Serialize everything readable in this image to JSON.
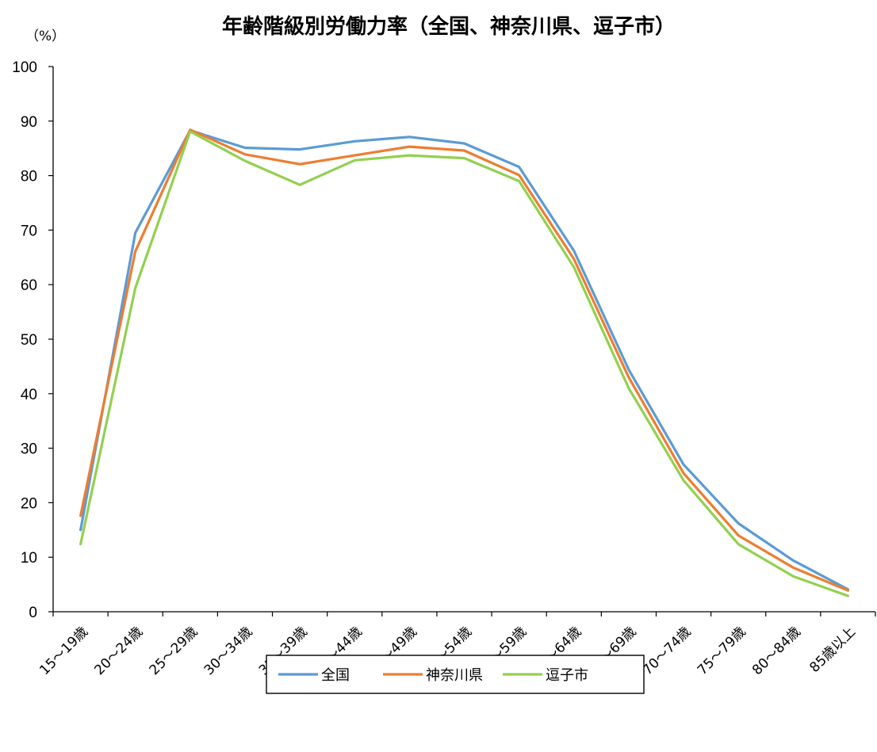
{
  "chart_data": {
    "type": "line",
    "title": "年齢階級別労働力率（全国、神奈川県、逗子市）",
    "ylabel": "（%）",
    "xlabel": "",
    "ylim": [
      0,
      100
    ],
    "yticks": [
      0,
      10,
      20,
      30,
      40,
      50,
      60,
      70,
      80,
      90,
      100
    ],
    "grid": false,
    "legend_position": "bottom",
    "categories": [
      "15～19歳",
      "20～24歳",
      "25～29歳",
      "30～34歳",
      "35～39歳",
      "40～44歳",
      "45～49歳",
      "50～54歳",
      "55～59歳",
      "60～64歳",
      "65～69歳",
      "70～74歳",
      "75～79歳",
      "80～84歳",
      "85歳以上"
    ],
    "series": [
      {
        "name": "全国",
        "color": "#5b9bd5",
        "values": [
          15.0,
          69.5,
          88.3,
          85.1,
          84.8,
          86.3,
          87.1,
          85.9,
          81.6,
          66.2,
          44.4,
          27.0,
          16.2,
          9.4,
          4.1
        ]
      },
      {
        "name": "神奈川県",
        "color": "#ed7d31",
        "values": [
          17.6,
          66.1,
          88.4,
          83.9,
          82.1,
          83.7,
          85.3,
          84.6,
          80.1,
          64.7,
          43.0,
          25.4,
          14.0,
          8.1,
          3.9
        ]
      },
      {
        "name": "逗子市",
        "color": "#92d050",
        "values": [
          12.4,
          59.4,
          88.1,
          82.7,
          78.3,
          82.8,
          83.7,
          83.2,
          79.0,
          63.2,
          41.0,
          24.1,
          12.4,
          6.5,
          2.9
        ]
      }
    ]
  }
}
